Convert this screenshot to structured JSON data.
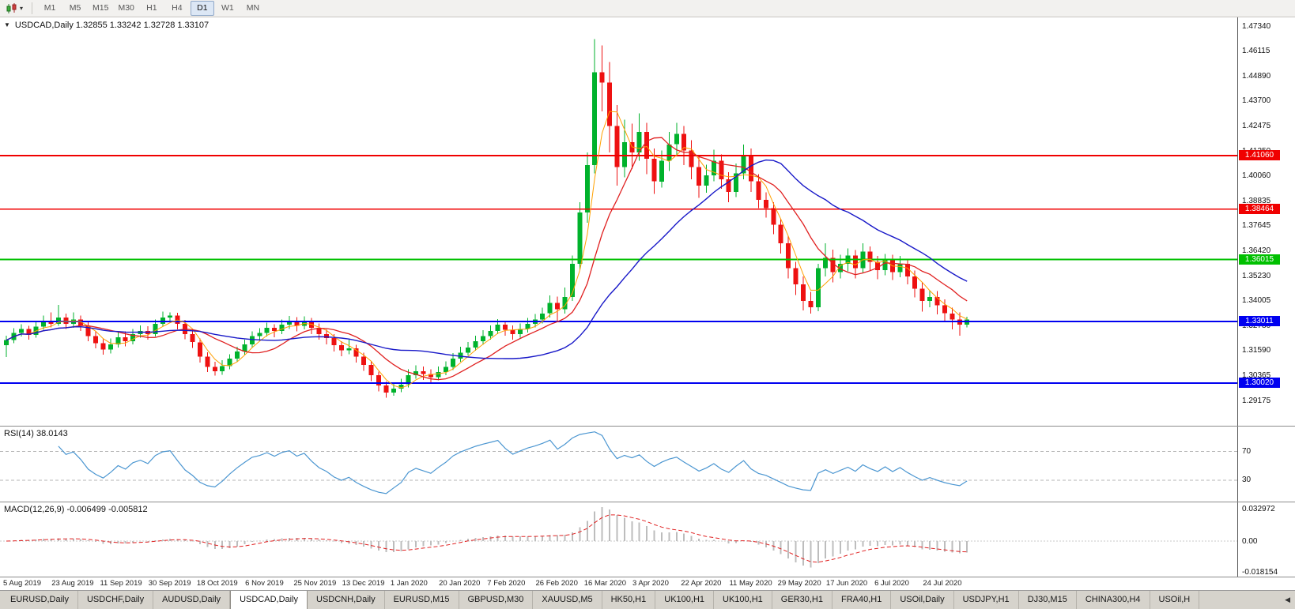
{
  "toolbar": {
    "timeframes": [
      "M1",
      "M5",
      "M15",
      "M30",
      "H1",
      "H4",
      "D1",
      "W1",
      "MN"
    ],
    "active_timeframe": "D1"
  },
  "chart_data": {
    "type": "candlestick",
    "title": "USDCAD,Daily",
    "title_text": "USDCAD,Daily 1.32855 1.33242 1.32728 1.33107",
    "ohlc_display": {
      "open": "1.32855",
      "high": "1.33242",
      "low": "1.32728",
      "close": "1.33107"
    },
    "price_axis_ticks": [
      "1.47340",
      "1.46115",
      "1.44890",
      "1.43700",
      "1.42475",
      "1.41250",
      "1.40060",
      "1.38835",
      "1.37645",
      "1.36420",
      "1.35230",
      "1.34005",
      "1.32780",
      "1.31590",
      "1.30365",
      "1.29175"
    ],
    "hlines": [
      {
        "value": 1.4106,
        "label": "1.41060",
        "color": "#f00000"
      },
      {
        "value": 1.38464,
        "label": "1.38464",
        "color": "#f00000"
      },
      {
        "value": 1.36015,
        "label": "1.36015",
        "color": "#00c000"
      },
      {
        "value": 1.33011,
        "label": "1.33011",
        "color": "#0000f0"
      },
      {
        "value": 1.3002,
        "label": "1.30020",
        "color": "#0000f0"
      }
    ],
    "x_labels": [
      "5 Aug 2019",
      "23 Aug 2019",
      "11 Sep 2019",
      "30 Sep 2019",
      "18 Oct 2019",
      "6 Nov 2019",
      "25 Nov 2019",
      "13 Dec 2019",
      "1 Jan 2020",
      "20 Jan 2020",
      "7 Feb 2020",
      "26 Feb 2020",
      "16 Mar 2020",
      "3 Apr 2020",
      "22 Apr 2020",
      "11 May 2020",
      "29 May 2020",
      "17 Jun 2020",
      "6 Jul 2020",
      "24 Jul 2020"
    ],
    "candles_ohlc": [
      [
        1.3185,
        1.3232,
        1.3128,
        1.321
      ],
      [
        1.321,
        1.3268,
        1.3196,
        1.3245
      ],
      [
        1.3245,
        1.3288,
        1.3228,
        1.3265
      ],
      [
        1.3265,
        1.328,
        1.3212,
        1.3235
      ],
      [
        1.3235,
        1.3298,
        1.3222,
        1.3275
      ],
      [
        1.3275,
        1.333,
        1.326,
        1.3305
      ],
      [
        1.3305,
        1.3345,
        1.3272,
        1.329
      ],
      [
        1.329,
        1.3382,
        1.328,
        1.332
      ],
      [
        1.332,
        1.334,
        1.3265,
        1.329
      ],
      [
        1.329,
        1.3345,
        1.327,
        1.331
      ],
      [
        1.331,
        1.333,
        1.3255,
        1.328
      ],
      [
        1.328,
        1.33,
        1.3205,
        1.323
      ],
      [
        1.323,
        1.3255,
        1.317,
        1.3195
      ],
      [
        1.3195,
        1.3215,
        1.314,
        1.3165
      ],
      [
        1.3165,
        1.3218,
        1.3145,
        1.319
      ],
      [
        1.319,
        1.3248,
        1.3175,
        1.3225
      ],
      [
        1.3225,
        1.3252,
        1.318,
        1.3205
      ],
      [
        1.3205,
        1.3265,
        1.319,
        1.324
      ],
      [
        1.324,
        1.3282,
        1.3222,
        1.3255
      ],
      [
        1.3255,
        1.3278,
        1.3212,
        1.324
      ],
      [
        1.324,
        1.331,
        1.3228,
        1.329
      ],
      [
        1.329,
        1.3348,
        1.3275,
        1.332
      ],
      [
        1.332,
        1.3345,
        1.3296,
        1.333
      ],
      [
        1.333,
        1.3342,
        1.3262,
        1.329
      ],
      [
        1.329,
        1.3308,
        1.3215,
        1.324
      ],
      [
        1.324,
        1.3262,
        1.3172,
        1.32
      ],
      [
        1.32,
        1.3218,
        1.3102,
        1.313
      ],
      [
        1.313,
        1.3152,
        1.3055,
        1.308
      ],
      [
        1.308,
        1.3105,
        1.3038,
        1.306
      ],
      [
        1.306,
        1.3112,
        1.3042,
        1.3085
      ],
      [
        1.3085,
        1.3142,
        1.3068,
        1.312
      ],
      [
        1.312,
        1.3178,
        1.3105,
        1.3155
      ],
      [
        1.3155,
        1.3212,
        1.314,
        1.319
      ],
      [
        1.319,
        1.3252,
        1.3175,
        1.323
      ],
      [
        1.323,
        1.3268,
        1.3205,
        1.3245
      ],
      [
        1.3245,
        1.3295,
        1.3228,
        1.327
      ],
      [
        1.327,
        1.3288,
        1.3225,
        1.3255
      ],
      [
        1.3255,
        1.331,
        1.324,
        1.3285
      ],
      [
        1.3285,
        1.3328,
        1.3265,
        1.33
      ],
      [
        1.33,
        1.3322,
        1.3252,
        1.328
      ],
      [
        1.328,
        1.3326,
        1.3262,
        1.33
      ],
      [
        1.33,
        1.3318,
        1.324,
        1.327
      ],
      [
        1.327,
        1.3292,
        1.3212,
        1.324
      ],
      [
        1.324,
        1.3262,
        1.319,
        1.322
      ],
      [
        1.322,
        1.324,
        1.3155,
        1.3185
      ],
      [
        1.3185,
        1.3205,
        1.3132,
        1.316
      ],
      [
        1.316,
        1.3212,
        1.3142,
        1.317
      ],
      [
        1.317,
        1.3188,
        1.3102,
        1.313
      ],
      [
        1.313,
        1.315,
        1.3062,
        1.309
      ],
      [
        1.309,
        1.3108,
        1.3012,
        1.304
      ],
      [
        1.304,
        1.3058,
        1.2962,
        1.299
      ],
      [
        1.299,
        1.301,
        1.293,
        1.2955
      ],
      [
        1.2955,
        1.3002,
        1.294,
        1.2975
      ],
      [
        1.2975,
        1.3022,
        1.2958,
        1.2995
      ],
      [
        1.2995,
        1.3068,
        1.298,
        1.304
      ],
      [
        1.304,
        1.3088,
        1.3022,
        1.306
      ],
      [
        1.306,
        1.3082,
        1.3018,
        1.3045
      ],
      [
        1.3045,
        1.3068,
        1.3002,
        1.303
      ],
      [
        1.303,
        1.3082,
        1.3015,
        1.3055
      ],
      [
        1.3055,
        1.3108,
        1.304,
        1.308
      ],
      [
        1.308,
        1.3148,
        1.3065,
        1.312
      ],
      [
        1.312,
        1.3178,
        1.3105,
        1.315
      ],
      [
        1.315,
        1.3202,
        1.3135,
        1.3175
      ],
      [
        1.3175,
        1.3232,
        1.3158,
        1.3205
      ],
      [
        1.3205,
        1.3258,
        1.3188,
        1.323
      ],
      [
        1.323,
        1.3282,
        1.3212,
        1.3255
      ],
      [
        1.3255,
        1.3312,
        1.324,
        1.3285
      ],
      [
        1.3285,
        1.3305,
        1.3232,
        1.326
      ],
      [
        1.326,
        1.3282,
        1.3212,
        1.324
      ],
      [
        1.324,
        1.3292,
        1.3222,
        1.3265
      ],
      [
        1.3265,
        1.3318,
        1.3248,
        1.329
      ],
      [
        1.329,
        1.3338,
        1.3272,
        1.331
      ],
      [
        1.331,
        1.3368,
        1.3292,
        1.334
      ],
      [
        1.334,
        1.3428,
        1.332,
        1.339
      ],
      [
        1.339,
        1.3422,
        1.3305,
        1.336
      ],
      [
        1.336,
        1.3465,
        1.334,
        1.342
      ],
      [
        1.342,
        1.362,
        1.34,
        1.358
      ],
      [
        1.358,
        1.388,
        1.355,
        1.383
      ],
      [
        1.383,
        1.412,
        1.378,
        1.406
      ],
      [
        1.406,
        1.467,
        1.402,
        1.451
      ],
      [
        1.451,
        1.464,
        1.432,
        1.446
      ],
      [
        1.446,
        1.456,
        1.412,
        1.425
      ],
      [
        1.425,
        1.435,
        1.396,
        1.405
      ],
      [
        1.405,
        1.428,
        1.4,
        1.417
      ],
      [
        1.417,
        1.426,
        1.404,
        1.412
      ],
      [
        1.412,
        1.431,
        1.408,
        1.422
      ],
      [
        1.422,
        1.4265,
        1.4015,
        1.409
      ],
      [
        1.409,
        1.414,
        1.392,
        1.398
      ],
      [
        1.398,
        1.413,
        1.395,
        1.408
      ],
      [
        1.408,
        1.422,
        1.403,
        1.416
      ],
      [
        1.416,
        1.4265,
        1.411,
        1.421
      ],
      [
        1.421,
        1.425,
        1.406,
        1.413
      ],
      [
        1.413,
        1.418,
        1.399,
        1.405
      ],
      [
        1.405,
        1.4105,
        1.39,
        1.396
      ],
      [
        1.396,
        1.4062,
        1.3925,
        1.401
      ],
      [
        1.401,
        1.4135,
        1.398,
        1.408
      ],
      [
        1.408,
        1.4112,
        1.3945,
        1.399
      ],
      [
        1.399,
        1.4025,
        1.388,
        1.393
      ],
      [
        1.393,
        1.4068,
        1.3905,
        1.402
      ],
      [
        1.402,
        1.416,
        1.399,
        1.411
      ],
      [
        1.411,
        1.414,
        1.393,
        1.398
      ],
      [
        1.398,
        1.4015,
        1.385,
        1.389
      ],
      [
        1.389,
        1.3928,
        1.3805,
        1.385
      ],
      [
        1.385,
        1.388,
        1.3725,
        1.377
      ],
      [
        1.377,
        1.38,
        1.363,
        1.368
      ],
      [
        1.368,
        1.3715,
        1.351,
        1.356
      ],
      [
        1.356,
        1.359,
        1.343,
        1.348
      ],
      [
        1.348,
        1.352,
        1.3355,
        1.34
      ],
      [
        1.34,
        1.3445,
        1.334,
        1.337
      ],
      [
        1.337,
        1.358,
        1.335,
        1.356
      ],
      [
        1.356,
        1.368,
        1.352,
        1.361
      ],
      [
        1.361,
        1.365,
        1.349,
        1.354
      ],
      [
        1.354,
        1.3625,
        1.351,
        1.358
      ],
      [
        1.358,
        1.3655,
        1.3545,
        1.362
      ],
      [
        1.362,
        1.3648,
        1.351,
        1.356
      ],
      [
        1.356,
        1.368,
        1.3535,
        1.364
      ],
      [
        1.364,
        1.3665,
        1.3548,
        1.359
      ],
      [
        1.359,
        1.3618,
        1.3505,
        1.355
      ],
      [
        1.355,
        1.3628,
        1.3525,
        1.36
      ],
      [
        1.36,
        1.3625,
        1.3502,
        1.354
      ],
      [
        1.354,
        1.3618,
        1.3515,
        1.358
      ],
      [
        1.358,
        1.3602,
        1.348,
        1.352
      ],
      [
        1.352,
        1.3548,
        1.3418,
        1.346
      ],
      [
        1.346,
        1.3492,
        1.3348,
        1.34
      ],
      [
        1.34,
        1.3452,
        1.337,
        1.342
      ],
      [
        1.342,
        1.3448,
        1.3335,
        1.338
      ],
      [
        1.338,
        1.3408,
        1.3302,
        1.334
      ],
      [
        1.334,
        1.3368,
        1.3262,
        1.331
      ],
      [
        1.331,
        1.3345,
        1.3232,
        1.3286
      ],
      [
        1.32855,
        1.33242,
        1.32728,
        1.33107
      ]
    ],
    "colors": {
      "up": "#00b22c",
      "down": "#ee1111",
      "ma_fast": "#ffa000",
      "ma_mid": "#e02020",
      "ma_slow": "#1818c8",
      "rsi": "#4b96d1",
      "macd_hist": "#bdbdbd",
      "macd_signal": "#e02020",
      "level_dash": "#b4b4b4"
    },
    "indicators": {
      "rsi": {
        "label": "RSI(14) 38.0143",
        "levels": [
          "70",
          "30"
        ]
      },
      "macd": {
        "label": "MACD(12,26,9) -0.006499 -0.005812",
        "axis_ticks": [
          "0.032972",
          "0.00",
          "-0.018154"
        ]
      }
    }
  },
  "tabs": {
    "items": [
      "EURUSD,Daily",
      "USDCHF,Daily",
      "AUDUSD,Daily",
      "USDCAD,Daily",
      "USDCNH,Daily",
      "EURUSD,M15",
      "GBPUSD,M30",
      "XAUUSD,M5",
      "HK50,H1",
      "UK100,H1",
      "UK100,H1",
      "GER30,H1",
      "FRA40,H1",
      "USOil,Daily",
      "USDJPY,H1",
      "DJ30,M15",
      "CHINA300,H4",
      "USOil,H"
    ],
    "active": "USDCAD,Daily",
    "scroll_arrow": "◀"
  }
}
